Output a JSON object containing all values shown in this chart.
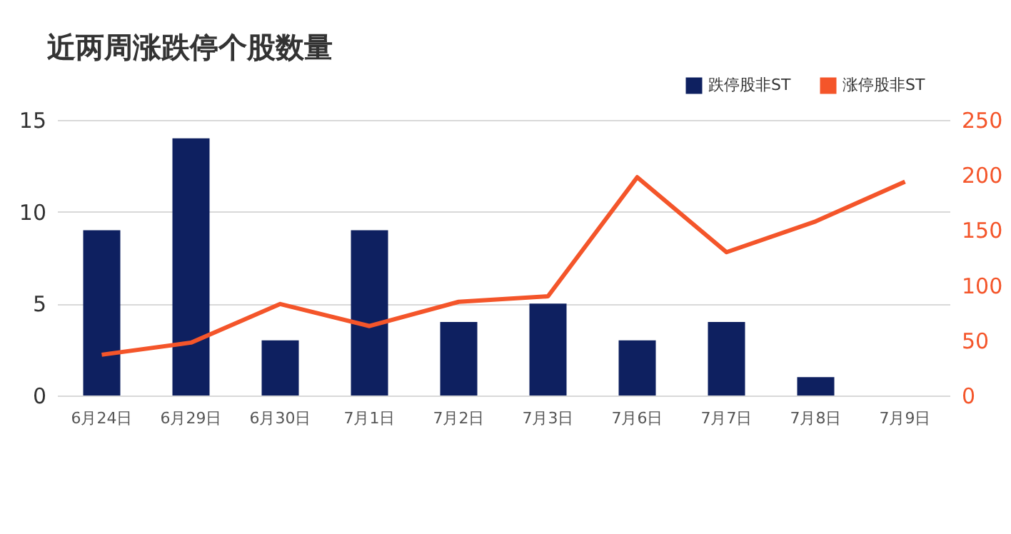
{
  "chart_data": {
    "type": "bar",
    "title": "近两周涨跌停个股数量",
    "categories": [
      "6月24日",
      "6月29日",
      "6月30日",
      "7月1日",
      "7月2日",
      "7月3日",
      "7月6日",
      "7月7日",
      "7月8日",
      "7月9日"
    ],
    "series": [
      {
        "name": "跌停股非ST",
        "type": "bar",
        "color": "#0e2060",
        "values": [
          9,
          14,
          3,
          9,
          4,
          5,
          3,
          4,
          1,
          null
        ]
      },
      {
        "name": "涨停股非ST",
        "type": "line",
        "axis": "y2",
        "color": "#f4552a",
        "values": [
          37,
          48,
          83,
          63,
          85,
          90,
          198,
          130,
          158,
          194
        ]
      }
    ],
    "ylim": [
      0,
      15
    ],
    "yticks": [
      0,
      5,
      10,
      15
    ],
    "y2lim": [
      0,
      250
    ],
    "y2ticks": [
      0,
      50,
      100,
      150,
      200,
      250
    ],
    "grid": "y",
    "legend": "top right",
    "marker": "none",
    "line_style": "solid"
  }
}
